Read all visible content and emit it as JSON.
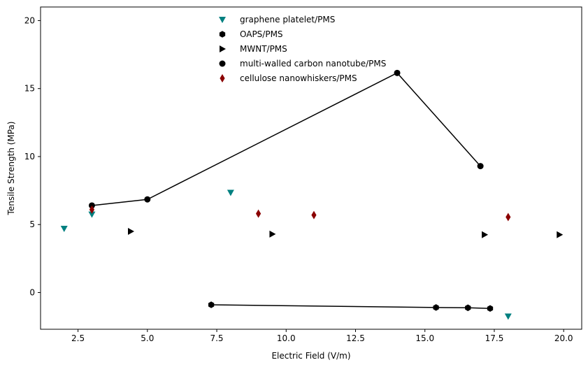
{
  "chart_data": {
    "type": "scatter",
    "xlabel": "Electric Field (V/m)",
    "ylabel": "Tensile Strength (MPa)",
    "xlim": [
      1.15,
      20.65
    ],
    "ylim": [
      -2.7,
      21.0
    ],
    "xticks": [
      2.5,
      5.0,
      7.5,
      10.0,
      12.5,
      15.0,
      17.5,
      20.0
    ],
    "xtick_labels": [
      "2.5",
      "5.0",
      "7.5",
      "10.0",
      "12.5",
      "15.0",
      "17.5",
      "20.0"
    ],
    "yticks": [
      0,
      5,
      10,
      15,
      20
    ],
    "ytick_labels": [
      "0",
      "5",
      "10",
      "15",
      "20"
    ],
    "grid": false,
    "legend_position": "top-center",
    "series": [
      {
        "name": "graphene platelet/PMS",
        "marker": "triangle-down",
        "color": "#008080",
        "line": false,
        "x": [
          2.0,
          3.0,
          8.0,
          18.0
        ],
        "y": [
          4.7,
          5.75,
          7.35,
          -1.75
        ]
      },
      {
        "name": "OAPS/PMS",
        "marker": "hexagon",
        "color": "#000000",
        "line": true,
        "x": [
          7.3,
          15.4,
          16.55,
          17.35
        ],
        "y": [
          -0.9,
          -1.1,
          -1.12,
          -1.17
        ]
      },
      {
        "name": "MWNT/PMS",
        "marker": "triangle-right",
        "color": "#000000",
        "line": false,
        "x": [
          4.4,
          9.5,
          17.15,
          19.85
        ],
        "y": [
          4.5,
          4.3,
          4.25,
          4.25
        ]
      },
      {
        "name": "multi-walled carbon nanotube/PMS",
        "marker": "circle",
        "color": "#000000",
        "line": true,
        "x": [
          3.0,
          5.0,
          14.0,
          17.0
        ],
        "y": [
          6.4,
          6.85,
          16.15,
          9.3
        ]
      },
      {
        "name": "cellulose nanowhiskers/PMS",
        "marker": "diamond",
        "color": "#8b0000",
        "line": false,
        "x": [
          3.0,
          9.0,
          11.0,
          18.0
        ],
        "y": [
          6.1,
          5.8,
          5.7,
          5.55
        ]
      }
    ]
  }
}
